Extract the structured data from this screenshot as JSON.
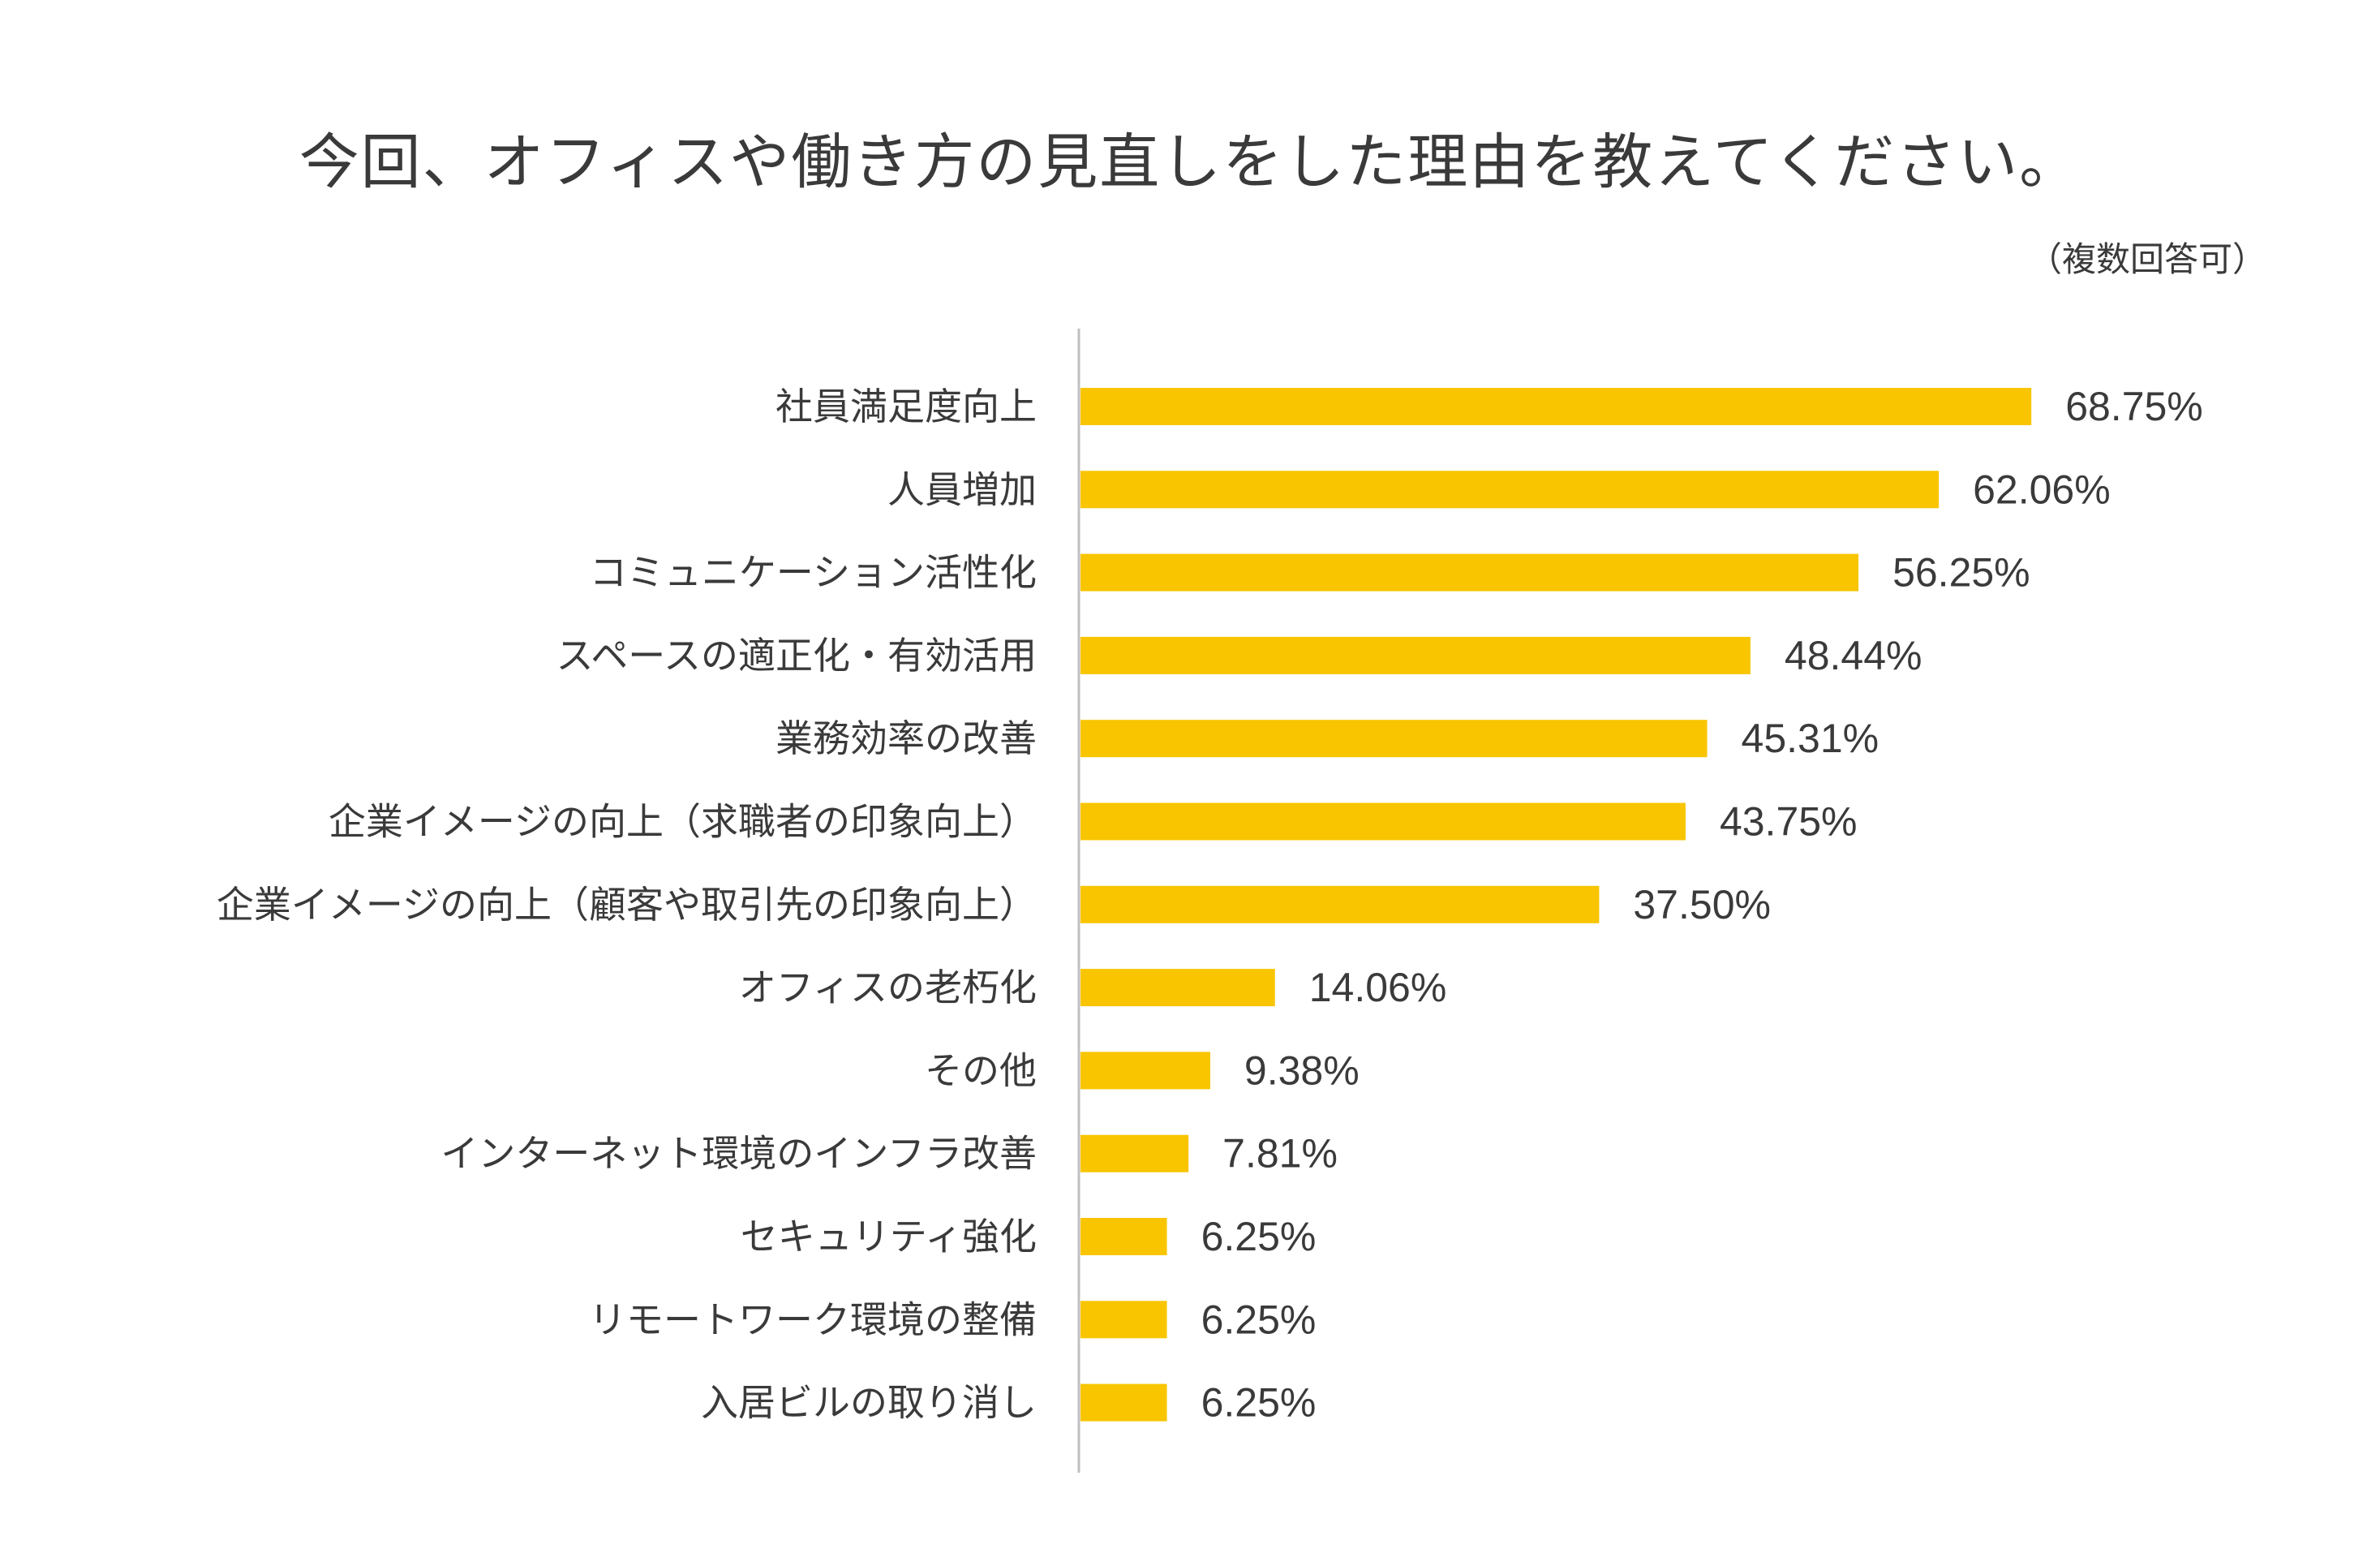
{
  "chart_data": {
    "type": "bar",
    "orientation": "horizontal",
    "title": "今回、オフィスや働き方の見直しをした理由を教えてください。",
    "subtitle": "（複数回答可）",
    "categories": [
      "社員満足度向上",
      "人員増加",
      "コミュニケーション活性化",
      "スペースの適正化・有効活用",
      "業務効率の改善",
      "企業イメージの向上（求職者の印象向上）",
      "企業イメージの向上（顧客や取引先の印象向上）",
      "オフィスの老朽化",
      "その他",
      "インターネット環境のインフラ改善",
      "セキュリティ強化",
      "リモートワーク環境の整備",
      "入居ビルの取り消し"
    ],
    "values": [
      68.75,
      62.06,
      56.25,
      48.44,
      45.31,
      43.75,
      37.5,
      14.06,
      9.38,
      7.81,
      6.25,
      6.25,
      6.25
    ],
    "value_labels": [
      "68.75%",
      "62.06%",
      "56.25%",
      "48.44%",
      "45.31%",
      "43.75%",
      "37.50%",
      "14.06%",
      "9.38%",
      "7.81%",
      "6.25%",
      "6.25%",
      "6.25%"
    ],
    "unit": "%",
    "xlim": [
      0,
      100
    ],
    "xlabel": "",
    "ylabel": "",
    "grid": false,
    "legend": "none",
    "colors": {
      "bar": "#F8C500",
      "axis": "#BFBFBF",
      "text": "#3A3A3A"
    }
  }
}
